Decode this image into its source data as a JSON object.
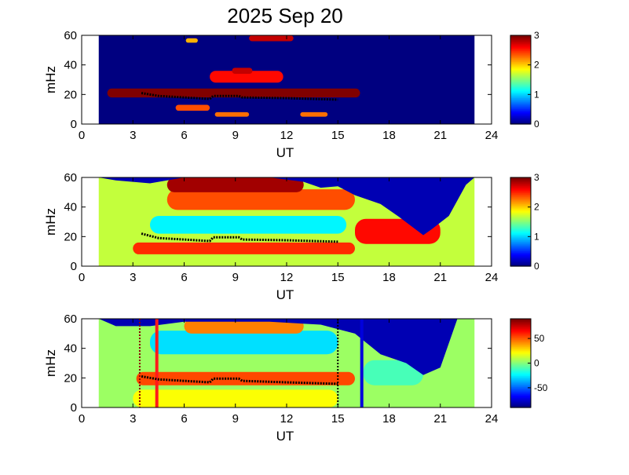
{
  "title": "2025 Sep 20",
  "chart_data": [
    {
      "type": "heatmap",
      "xlabel": "UT",
      "ylabel": "mHz",
      "xlim": [
        0,
        24
      ],
      "ylim": [
        0,
        60
      ],
      "xticks": [
        "0",
        "3",
        "6",
        "9",
        "12",
        "15",
        "18",
        "21",
        "24"
      ],
      "yticks": [
        "0",
        "20",
        "40",
        "60"
      ],
      "colorbar": {
        "range": [
          0,
          3
        ],
        "ticks": [
          "0",
          "1",
          "2",
          "3"
        ],
        "colormap": "jet"
      },
      "data_span": [
        1,
        23
      ],
      "bands": [
        {
          "x": [
            1.5,
            16.3
          ],
          "y": [
            18,
            24
          ],
          "level": 3.0
        },
        {
          "x": [
            7.5,
            11.8
          ],
          "y": [
            28,
            36
          ],
          "level": 2.6
        },
        {
          "x": [
            5.5,
            7.5
          ],
          "y": [
            9,
            13
          ],
          "level": 2.4
        },
        {
          "x": [
            8.8,
            10.0
          ],
          "y": [
            34,
            38
          ],
          "level": 2.8
        },
        {
          "x": [
            9.8,
            12.4
          ],
          "y": [
            56,
            60
          ],
          "level": 2.8
        },
        {
          "x": [
            12.8,
            14.4
          ],
          "y": [
            5,
            8
          ],
          "level": 2.3
        },
        {
          "x": [
            7.8,
            9.8
          ],
          "y": [
            5,
            8
          ],
          "level": 2.3
        },
        {
          "x": [
            6.1,
            6.8
          ],
          "y": [
            55,
            58
          ],
          "level": 2.1
        }
      ],
      "trace": [
        [
          3.5,
          21
        ],
        [
          4.5,
          19
        ],
        [
          6,
          18
        ],
        [
          7.5,
          17
        ],
        [
          7.7,
          19
        ],
        [
          9.2,
          19
        ],
        [
          9.4,
          18
        ],
        [
          12,
          17.5
        ],
        [
          15,
          16.5
        ]
      ]
    },
    {
      "type": "heatmap",
      "xlabel": "UT",
      "ylabel": "mHz",
      "xlim": [
        0,
        24
      ],
      "ylim": [
        0,
        60
      ],
      "xticks": [
        "0",
        "3",
        "6",
        "9",
        "12",
        "15",
        "18",
        "21",
        "24"
      ],
      "yticks": [
        "0",
        "20",
        "40",
        "60"
      ],
      "colorbar": {
        "range": [
          0,
          3
        ],
        "ticks": [
          "0",
          "1",
          "2",
          "3"
        ],
        "colormap": "jet"
      },
      "data_span": [
        1,
        23
      ],
      "mask_upper": [
        [
          1,
          60
        ],
        [
          2,
          58
        ],
        [
          4,
          56
        ],
        [
          6,
          60
        ],
        [
          11,
          60
        ],
        [
          13,
          57
        ],
        [
          14,
          53
        ],
        [
          15,
          54
        ],
        [
          16,
          48
        ],
        [
          17.5,
          42
        ],
        [
          18.5,
          34
        ],
        [
          20,
          21
        ],
        [
          20.5,
          25
        ],
        [
          21.5,
          34
        ],
        [
          22.5,
          55
        ],
        [
          23,
          60
        ]
      ],
      "bands": [
        {
          "x": [
            1,
            23
          ],
          "y": [
            0,
            60
          ],
          "level": 1.7
        },
        {
          "x": [
            4,
            15.5
          ],
          "y": [
            22,
            34
          ],
          "level": 1.1
        },
        {
          "x": [
            3,
            16
          ],
          "y": [
            8,
            16
          ],
          "level": 2.5
        },
        {
          "x": [
            5,
            16
          ],
          "y": [
            38,
            52
          ],
          "level": 2.4
        },
        {
          "x": [
            5,
            13
          ],
          "y": [
            50,
            60
          ],
          "level": 2.9
        },
        {
          "x": [
            16,
            21
          ],
          "y": [
            15,
            32
          ],
          "level": 2.6
        }
      ],
      "trace": [
        [
          3.5,
          22
        ],
        [
          4.5,
          19
        ],
        [
          6,
          18
        ],
        [
          7.5,
          17
        ],
        [
          7.7,
          19.5
        ],
        [
          9.2,
          19.5
        ],
        [
          9.4,
          18
        ],
        [
          12,
          17.5
        ],
        [
          15,
          16.5
        ]
      ]
    },
    {
      "type": "heatmap",
      "xlabel": "UT",
      "ylabel": "mHz",
      "xlim": [
        0,
        24
      ],
      "ylim": [
        0,
        60
      ],
      "xticks": [
        "0",
        "3",
        "6",
        "9",
        "12",
        "15",
        "18",
        "21",
        "24"
      ],
      "yticks": [
        "0",
        "20",
        "40",
        "60"
      ],
      "colorbar": {
        "range": [
          -90,
          90
        ],
        "ticks": [
          "50",
          "0",
          "-50"
        ],
        "tick_values": [
          50,
          0,
          -50
        ],
        "colormap": "jet"
      },
      "data_span": [
        1,
        23
      ],
      "mask_upper": [
        [
          1,
          60
        ],
        [
          2,
          55
        ],
        [
          4,
          55
        ],
        [
          6,
          58
        ],
        [
          11,
          58
        ],
        [
          14,
          56
        ],
        [
          16,
          50
        ],
        [
          17.5,
          36
        ],
        [
          19,
          30
        ],
        [
          20,
          22
        ],
        [
          21,
          27
        ],
        [
          22,
          60
        ]
      ],
      "bands": [
        {
          "x": [
            1,
            23
          ],
          "y": [
            0,
            60
          ],
          "level": 5
        },
        {
          "x": [
            3.2,
            16
          ],
          "y": [
            15,
            24
          ],
          "level": 55
        },
        {
          "x": [
            3,
            15
          ],
          "y": [
            0,
            12
          ],
          "level": 22
        },
        {
          "x": [
            4,
            15
          ],
          "y": [
            36,
            52
          ],
          "level": -28
        },
        {
          "x": [
            6,
            13
          ],
          "y": [
            50,
            60
          ],
          "level": 45
        },
        {
          "x": [
            16.5,
            20
          ],
          "y": [
            15,
            32
          ],
          "level": -10
        }
      ],
      "markers": [
        {
          "x": 3.4,
          "color": "#8a0000",
          "style": "dotted"
        },
        {
          "x": 4.4,
          "color": "#ff1a1a",
          "style": "solid"
        },
        {
          "x": 15.0,
          "color": "#000000",
          "style": "dotted"
        },
        {
          "x": 16.4,
          "color": "#0000dd",
          "style": "solid"
        }
      ],
      "trace": [
        [
          3.5,
          21
        ],
        [
          4.5,
          19
        ],
        [
          6,
          18
        ],
        [
          7.5,
          17
        ],
        [
          7.7,
          19.5
        ],
        [
          9.2,
          19.5
        ],
        [
          9.4,
          18
        ],
        [
          12,
          17
        ],
        [
          15,
          16
        ]
      ]
    }
  ]
}
